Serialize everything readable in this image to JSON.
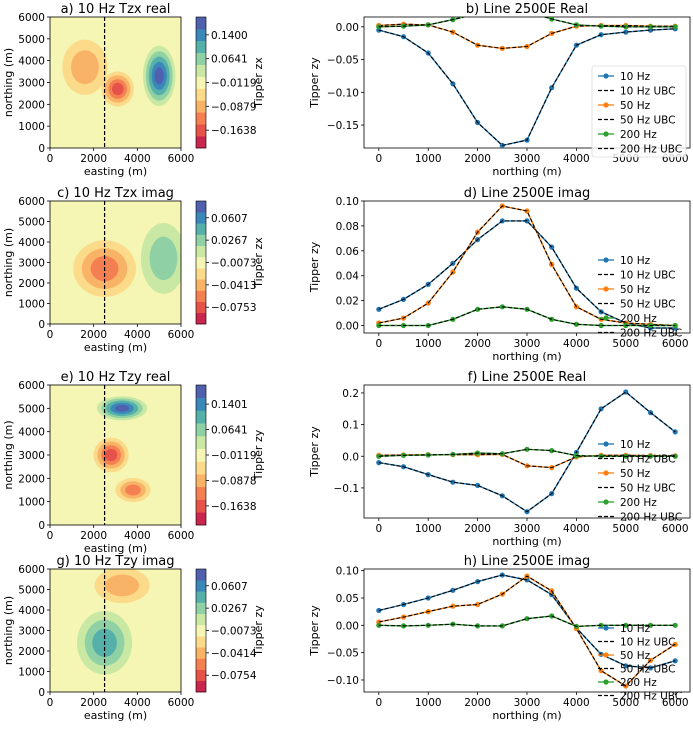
{
  "maps": [
    {
      "title": "a) 10 Hz Tzx real",
      "xlabel": "easting (m)",
      "ylabel": "northing (m)",
      "xticks": [
        "0",
        "2000",
        "4000",
        "6000"
      ],
      "yticks": [
        "0",
        "1000",
        "2000",
        "3000",
        "4000",
        "5000",
        "6000"
      ],
      "colorbar_label": "Tipper zx",
      "colorbar_ticks": [
        "0.1400",
        "0.0641",
        "−0.0119",
        "−0.0879",
        "−0.1638"
      ],
      "profile_line_easting": 2500
    },
    {
      "title": "c) 10 Hz Tzx imag",
      "xlabel": "easting (m)",
      "ylabel": "northing (m)",
      "xticks": [
        "0",
        "2000",
        "4000",
        "6000"
      ],
      "yticks": [
        "0",
        "1000",
        "2000",
        "3000",
        "4000",
        "5000",
        "6000"
      ],
      "colorbar_label": "Tipper zx",
      "colorbar_ticks": [
        "0.0607",
        "0.0267",
        "−0.0073",
        "−0.0413",
        "−0.0753"
      ],
      "profile_line_easting": 2500
    },
    {
      "title": "e) 10 Hz Tzy real",
      "xlabel": "easting (m)",
      "ylabel": "northing (m)",
      "xticks": [
        "0",
        "2000",
        "4000",
        "6000"
      ],
      "yticks": [
        "0",
        "1000",
        "2000",
        "3000",
        "4000",
        "5000",
        "6000"
      ],
      "colorbar_label": "Tipper zy",
      "colorbar_ticks": [
        "0.1401",
        "0.0641",
        "−0.0119",
        "−0.0878",
        "−0.1638"
      ],
      "profile_line_easting": 2500
    },
    {
      "title": "g) 10 Hz Tzy imag",
      "xlabel": "easting (m)",
      "ylabel": "northing (m)",
      "xticks": [
        "0",
        "2000",
        "4000",
        "6000"
      ],
      "yticks": [
        "0",
        "1000",
        "2000",
        "3000",
        "4000",
        "5000",
        "6000"
      ],
      "colorbar_label": "Tipper zy",
      "colorbar_ticks": [
        "0.0607",
        "0.0267",
        "−0.0073",
        "−0.0414",
        "−0.0754"
      ],
      "profile_line_easting": 2500
    }
  ],
  "colormap": [
    "#c9254d",
    "#e4524a",
    "#f47f51",
    "#f9b367",
    "#fbdb8a",
    "#f5f6b3",
    "#c9e8a4",
    "#8fd1a4",
    "#56b0aa",
    "#3a88b9",
    "#4f61ae"
  ],
  "series_colors": {
    "10 Hz": "#1f77b4",
    "50 Hz": "#ff7f0e",
    "200 Hz": "#2ca02c",
    "UBC": "#000000"
  },
  "legend_labels": [
    "10 Hz",
    "10 Hz UBC",
    "50 Hz",
    "50 Hz UBC",
    "200 Hz",
    "200 Hz UBC"
  ],
  "chart_data": [
    {
      "type": "line",
      "title": "b) Line 2500E Real",
      "xlabel": "northing (m)",
      "ylabel": "Tipper zy",
      "xlim": [
        -300,
        6300
      ],
      "ylim": [
        -0.185,
        0.015
      ],
      "x": [
        0,
        500,
        1000,
        1500,
        2000,
        2500,
        3000,
        3500,
        4000,
        4500,
        5000,
        5500,
        6000
      ],
      "xticks": [
        0,
        1000,
        2000,
        3000,
        4000,
        5000,
        6000
      ],
      "yticks": [
        0.0,
        -0.05,
        -0.1,
        -0.15
      ],
      "ytick_labels": [
        "0.00",
        "−0.05",
        "−0.10",
        "−0.15"
      ],
      "legend": "right",
      "series": [
        {
          "name": "10 Hz",
          "values": [
            -0.005,
            -0.015,
            -0.04,
            -0.087,
            -0.146,
            -0.181,
            -0.173,
            -0.093,
            -0.028,
            -0.012,
            -0.008,
            -0.005,
            -0.003
          ]
        },
        {
          "name": "50 Hz",
          "values": [
            0.002,
            0.004,
            0.003,
            -0.008,
            -0.028,
            -0.033,
            -0.03,
            -0.01,
            0.001,
            0.002,
            0.002,
            0.001,
            0.001
          ]
        },
        {
          "name": "200 Hz",
          "values": [
            0.0,
            0.001,
            0.003,
            0.011,
            0.02,
            0.025,
            0.023,
            0.012,
            0.003,
            0.001,
            0.0,
            0.0,
            0.0
          ]
        }
      ]
    },
    {
      "type": "line",
      "title": "d) Line 2500E imag",
      "xlabel": "northing (m)",
      "ylabel": "Tipper zy",
      "xlim": [
        -300,
        6300
      ],
      "ylim": [
        -0.006,
        0.1
      ],
      "x": [
        0,
        500,
        1000,
        1500,
        2000,
        2500,
        3000,
        3500,
        4000,
        4500,
        5000,
        5500,
        6000
      ],
      "xticks": [
        0,
        1000,
        2000,
        3000,
        4000,
        5000,
        6000
      ],
      "yticks": [
        0.0,
        0.02,
        0.04,
        0.06,
        0.08,
        0.1
      ],
      "ytick_labels": [
        "0.00",
        "0.02",
        "0.04",
        "0.06",
        "0.08",
        "0.10"
      ],
      "legend": "right",
      "series": [
        {
          "name": "10 Hz",
          "values": [
            0.013,
            0.021,
            0.033,
            0.05,
            0.069,
            0.084,
            0.084,
            0.063,
            0.03,
            0.011,
            0.002,
            -0.002,
            -0.002
          ]
        },
        {
          "name": "50 Hz",
          "values": [
            0.002,
            0.006,
            0.018,
            0.043,
            0.075,
            0.096,
            0.092,
            0.049,
            0.015,
            0.005,
            0.002,
            0.001,
            0.0
          ]
        },
        {
          "name": "200 Hz",
          "values": [
            0.0,
            0.0,
            0.0,
            0.005,
            0.013,
            0.015,
            0.013,
            0.005,
            0.001,
            0.0,
            0.0,
            0.0,
            0.0
          ]
        }
      ]
    },
    {
      "type": "line",
      "title": "f) Line 2500E Real",
      "xlabel": "northing (m)",
      "ylabel": "Tipper zy",
      "xlim": [
        -300,
        6300
      ],
      "ylim": [
        -0.195,
        0.225
      ],
      "x": [
        0,
        500,
        1000,
        1500,
        2000,
        2500,
        3000,
        3500,
        4000,
        4500,
        5000,
        5500,
        6000
      ],
      "xticks": [
        0,
        1000,
        2000,
        3000,
        4000,
        5000,
        6000
      ],
      "yticks": [
        0.2,
        0.1,
        0.0,
        -0.1
      ],
      "ytick_labels": [
        "0.2",
        "0.1",
        "0.0",
        "−0.1"
      ],
      "legend": "right",
      "series": [
        {
          "name": "10 Hz",
          "values": [
            -0.02,
            -0.033,
            -0.058,
            -0.082,
            -0.092,
            -0.125,
            -0.175,
            -0.118,
            0.012,
            0.15,
            0.203,
            0.138,
            0.077
          ]
        },
        {
          "name": "50 Hz",
          "values": [
            0.003,
            0.004,
            0.005,
            0.005,
            0.005,
            0.006,
            -0.03,
            -0.036,
            -0.002,
            0.003,
            0.003,
            0.002,
            0.001
          ]
        },
        {
          "name": "200 Hz",
          "values": [
            0.0,
            0.003,
            0.004,
            0.006,
            0.01,
            0.008,
            0.022,
            0.018,
            0.002,
            0.0,
            0.0,
            0.0,
            0.0
          ]
        }
      ]
    },
    {
      "type": "line",
      "title": "h) Line 2500E imag",
      "xlabel": "northing (m)",
      "ylabel": "Tipper zy",
      "xlim": [
        -300,
        6300
      ],
      "ylim": [
        -0.122,
        0.103
      ],
      "x": [
        0,
        500,
        1000,
        1500,
        2000,
        2500,
        3000,
        3500,
        4000,
        4500,
        5000,
        5500,
        6000
      ],
      "xticks": [
        0,
        1000,
        2000,
        3000,
        4000,
        5000,
        6000
      ],
      "yticks": [
        0.1,
        0.05,
        0.0,
        -0.05,
        -0.1
      ],
      "ytick_labels": [
        "0.10",
        "0.05",
        "0.00",
        "−0.05",
        "−0.10"
      ],
      "legend": "right",
      "series": [
        {
          "name": "10 Hz",
          "values": [
            0.027,
            0.038,
            0.05,
            0.064,
            0.08,
            0.092,
            0.083,
            0.056,
            -0.005,
            -0.053,
            -0.074,
            -0.078,
            -0.065
          ]
        },
        {
          "name": "50 Hz",
          "values": [
            0.006,
            0.015,
            0.025,
            0.035,
            0.038,
            0.057,
            0.09,
            0.063,
            -0.006,
            -0.083,
            -0.111,
            -0.064,
            -0.035
          ]
        },
        {
          "name": "200 Hz",
          "values": [
            0.0,
            -0.001,
            0.0,
            0.002,
            -0.001,
            -0.001,
            0.012,
            0.017,
            -0.002,
            0.0,
            0.0,
            0.0,
            0.0
          ]
        }
      ]
    }
  ]
}
